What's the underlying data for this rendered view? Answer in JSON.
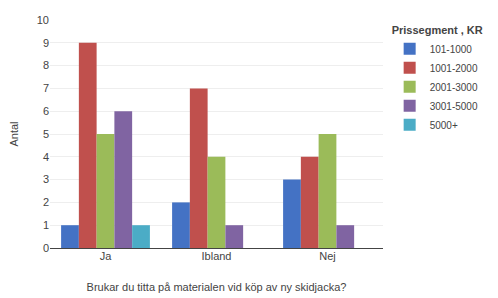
{
  "chart_data": {
    "type": "bar",
    "categories": [
      "Ja",
      "Ibland",
      "Nej"
    ],
    "series": [
      {
        "name": "101-1000",
        "color": "#4472C4",
        "values": [
          1,
          2,
          3
        ]
      },
      {
        "name": "1001-2000",
        "color": "#C0504D",
        "values": [
          9,
          7,
          4
        ]
      },
      {
        "name": "2001-3000",
        "color": "#9BBB59",
        "values": [
          5,
          4,
          5
        ]
      },
      {
        "name": "3001-5000",
        "color": "#8064A2",
        "values": [
          6,
          1,
          1
        ]
      },
      {
        "name": "5000+",
        "color": "#4BACC6",
        "values": [
          1,
          0,
          0
        ]
      }
    ],
    "legend_title": "Prissegment , KR",
    "xlabel": "Brukar du titta på materialen vid köp av ny skidjacka?",
    "ylabel": "Antal",
    "ylim": [
      0,
      10
    ],
    "yticks": [
      0,
      1,
      2,
      3,
      4,
      5,
      6,
      7,
      8,
      9,
      10
    ],
    "grid": true,
    "legend": "upper right"
  }
}
